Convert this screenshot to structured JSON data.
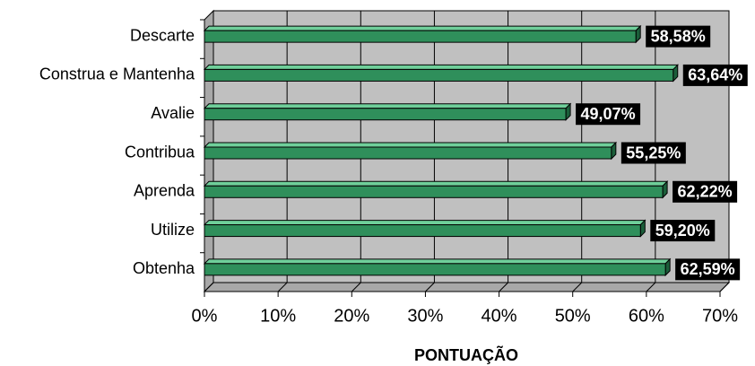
{
  "chart_data": {
    "type": "bar",
    "orientation": "horizontal",
    "x_label": "PONTUAÇÃO",
    "categories": [
      "Descarte",
      "Construa e Mantenha",
      "Avalie",
      "Contribua",
      "Aprenda",
      "Utilize",
      "Obtenha"
    ],
    "values": [
      58.58,
      63.64,
      49.07,
      55.25,
      62.22,
      59.2,
      62.59
    ],
    "value_labels": [
      "58,58%",
      "63,64%",
      "49,07%",
      "55,25%",
      "62,22%",
      "59,20%",
      "62,59%"
    ],
    "color": "#2f8f5b",
    "xlim": [
      0,
      70
    ],
    "xticks": [
      {
        "value": 0,
        "label": "0%"
      },
      {
        "value": 10,
        "label": "10%"
      },
      {
        "value": 20,
        "label": "20%"
      },
      {
        "value": 30,
        "label": "30%"
      },
      {
        "value": 40,
        "label": "40%"
      },
      {
        "value": 50,
        "label": "50%"
      },
      {
        "value": 60,
        "label": "60%"
      },
      {
        "value": 70,
        "label": "70%"
      }
    ],
    "grid": true
  }
}
